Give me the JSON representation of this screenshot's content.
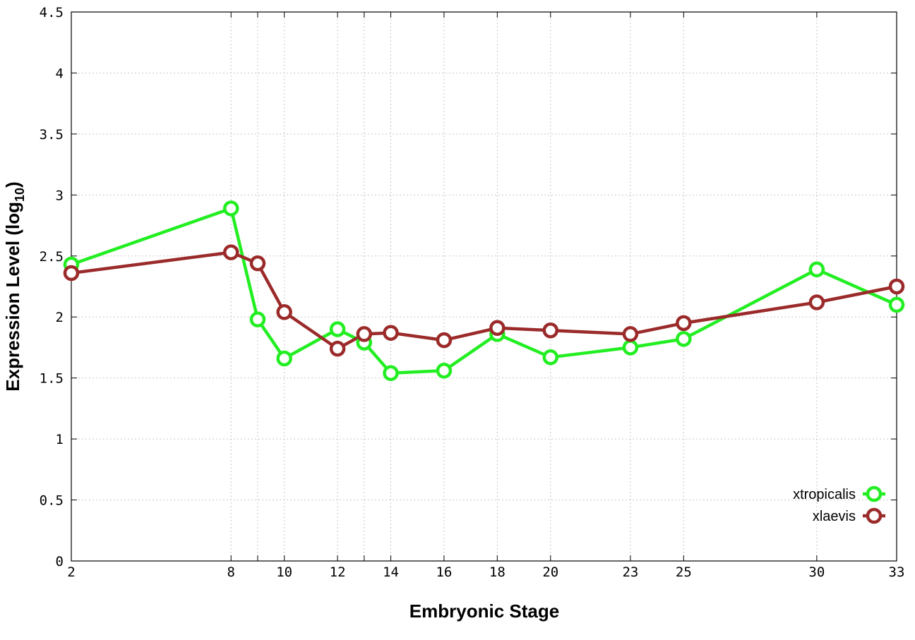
{
  "chart_data": {
    "type": "line",
    "xlabel": "Embryonic Stage",
    "ylabel_main": "Expression Level (log",
    "ylabel_sub": "10",
    "ylabel_close": ")",
    "ylim": [
      0,
      4.5
    ],
    "grid": true,
    "legend_position": "bottom-right",
    "x_ticks": [
      {
        "stage": 2,
        "label": "2"
      },
      {
        "stage": 8,
        "label": "8"
      },
      {
        "stage": 9,
        "label": ""
      },
      {
        "stage": 10,
        "label": "10"
      },
      {
        "stage": 12,
        "label": "12"
      },
      {
        "stage": 13,
        "label": ""
      },
      {
        "stage": 14,
        "label": "14"
      },
      {
        "stage": 16,
        "label": "16"
      },
      {
        "stage": 18,
        "label": "18"
      },
      {
        "stage": 20,
        "label": "20"
      },
      {
        "stage": 23,
        "label": "23"
      },
      {
        "stage": 25,
        "label": "25"
      },
      {
        "stage": 30,
        "label": "30"
      },
      {
        "stage": 33,
        "label": "33"
      }
    ],
    "y_ticks": [
      {
        "value": 0,
        "label": "0"
      },
      {
        "value": 0.5,
        "label": "0.5"
      },
      {
        "value": 1,
        "label": "1"
      },
      {
        "value": 1.5,
        "label": "1.5"
      },
      {
        "value": 2,
        "label": "2"
      },
      {
        "value": 2.5,
        "label": "2.5"
      },
      {
        "value": 3,
        "label": "3"
      },
      {
        "value": 3.5,
        "label": "3.5"
      },
      {
        "value": 4,
        "label": "4"
      },
      {
        "value": 4.5,
        "label": "4.5"
      }
    ],
    "x": [
      2,
      8,
      9,
      10,
      12,
      13,
      14,
      16,
      18,
      20,
      23,
      25,
      30,
      33
    ],
    "series": [
      {
        "name": "xtropicalis",
        "color": "#22ee22",
        "values": [
          2.43,
          2.89,
          1.98,
          1.66,
          1.9,
          1.79,
          1.54,
          1.56,
          1.86,
          1.67,
          1.75,
          1.82,
          2.39,
          2.1
        ]
      },
      {
        "name": "xlaevis",
        "color": "#9b2a2a",
        "values": [
          2.36,
          2.53,
          2.44,
          2.04,
          1.74,
          1.86,
          1.87,
          1.81,
          1.91,
          1.89,
          1.86,
          1.95,
          2.12,
          2.25
        ]
      }
    ]
  }
}
